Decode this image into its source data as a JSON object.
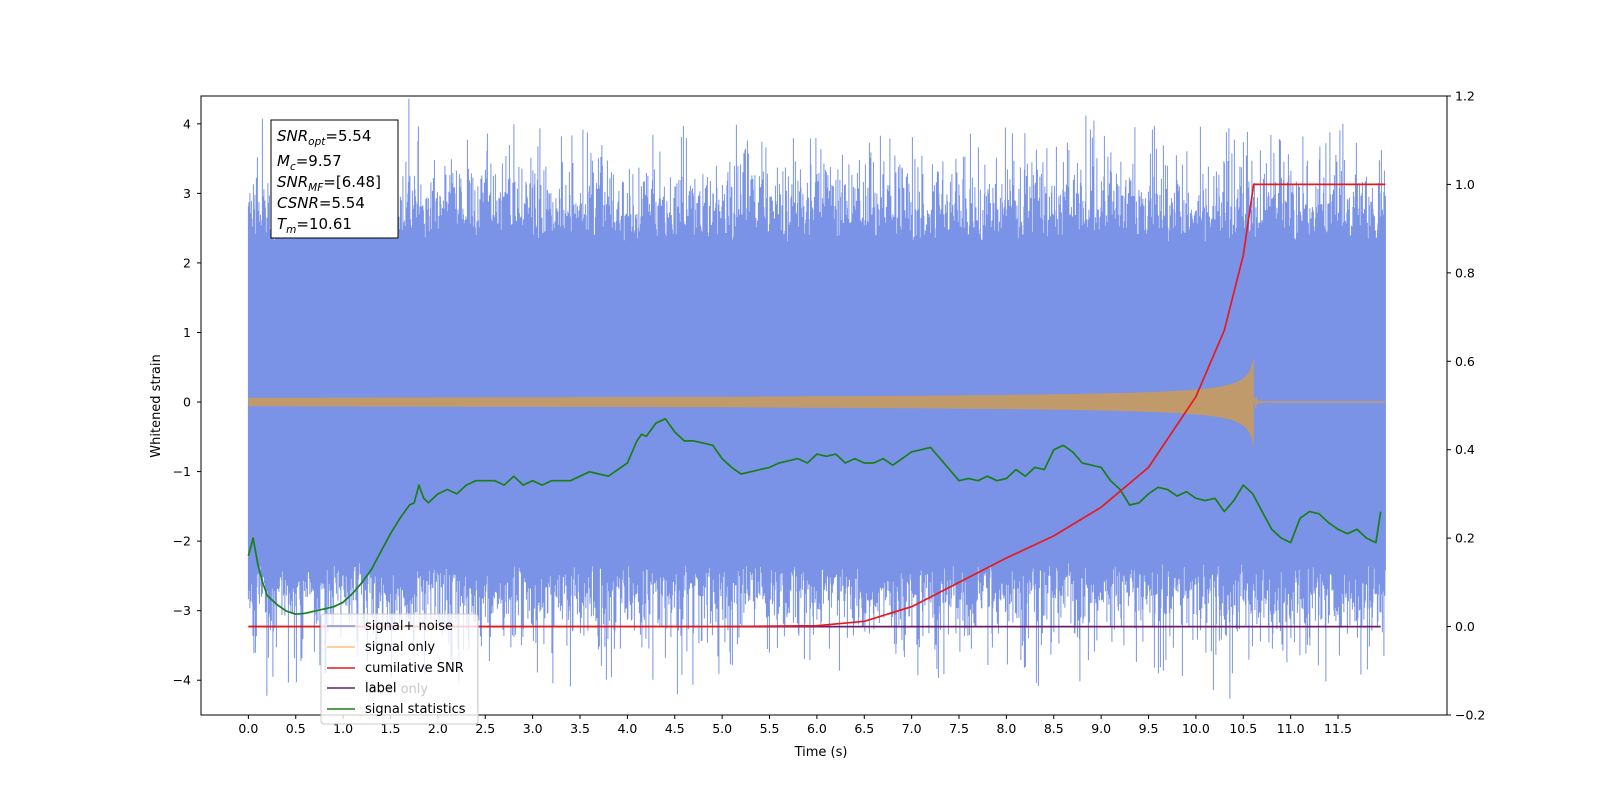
{
  "chart_data": {
    "type": "line",
    "xlabel": "Time (s)",
    "ylabel": "Whitened strain",
    "xlim": [
      -0.5,
      12.65
    ],
    "ylim": [
      -4.5,
      4.4
    ],
    "y2lim": [
      -0.2,
      1.2
    ],
    "grid": false,
    "legend_position": "lower-left",
    "x_ticks": [
      "0.0",
      "0.5",
      "1.0",
      "1.5",
      "2.0",
      "2.5",
      "3.0",
      "3.5",
      "4.0",
      "4.5",
      "5.0",
      "5.5",
      "6.0",
      "6.5",
      "7.0",
      "7.5",
      "8.0",
      "8.5",
      "9.0",
      "9.5",
      "10.0",
      "10.5",
      "11.0",
      "11.5"
    ],
    "y_ticks": [
      "4",
      "3",
      "2",
      "1",
      "0",
      "−1",
      "−2",
      "−3",
      "−4"
    ],
    "y2_ticks": [
      "1.2",
      "1.0",
      "0.8",
      "0.6",
      "0.4",
      "0.2",
      "0.0",
      "−0.2"
    ],
    "annotation": {
      "snr_opt": {
        "sym": "SNR",
        "sub": "opt",
        "value": "=5.54"
      },
      "mc": {
        "sym": "M",
        "sub": "c",
        "value": "=9.57"
      },
      "snr_mf": {
        "sym": "SNR",
        "sub": "MF",
        "value": "=[6.48]"
      },
      "csnr": {
        "sym": "CSNR",
        "sub": "",
        "value": "=5.54"
      },
      "tm": {
        "sym": "T",
        "sub": "m",
        "value": "=10.61"
      }
    },
    "series": [
      {
        "name": "signal+ noise",
        "color": "#7a93e6",
        "axis": "left",
        "x_range": [
          0.0,
          12.0
        ],
        "envelope_upper": 2.3,
        "envelope_lower": -2.3,
        "peak_max": 4.0,
        "peak_min": -4.1
      },
      {
        "name": "signal only",
        "color": "#ffc47a",
        "axis": "left",
        "merger_time": 10.61,
        "peak_amplitude": 0.65
      },
      {
        "name": "cumilative SNR",
        "color": "#e8191c",
        "axis": "right",
        "x": [
          0.0,
          5.0,
          6.0,
          6.5,
          7.0,
          7.5,
          8.0,
          8.5,
          9.0,
          9.5,
          10.0,
          10.3,
          10.5,
          10.61,
          12.0
        ],
        "y": [
          0.0,
          0.0,
          0.002,
          0.012,
          0.045,
          0.1,
          0.155,
          0.205,
          0.27,
          0.36,
          0.52,
          0.67,
          0.84,
          1.0,
          1.0
        ]
      },
      {
        "name": "label",
        "color": "#6a1b6e",
        "axis": "right",
        "x": [
          0.0,
          11.95
        ],
        "y": [
          0.0,
          0.0
        ]
      },
      {
        "name": "label only",
        "color": "#8e8ee0",
        "axis": "right",
        "hidden": true
      },
      {
        "name": "signal statistics",
        "color": "#1a7f1a",
        "axis": "right",
        "x": [
          0.0,
          0.05,
          0.1,
          0.15,
          0.2,
          0.3,
          0.4,
          0.5,
          0.6,
          0.7,
          0.8,
          0.9,
          1.0,
          1.1,
          1.2,
          1.3,
          1.4,
          1.5,
          1.6,
          1.7,
          1.75,
          1.8,
          1.85,
          1.9,
          2.0,
          2.1,
          2.2,
          2.3,
          2.4,
          2.5,
          2.6,
          2.7,
          2.8,
          2.9,
          3.0,
          3.1,
          3.2,
          3.3,
          3.4,
          3.5,
          3.6,
          3.7,
          3.8,
          3.9,
          4.0,
          4.1,
          4.15,
          4.2,
          4.3,
          4.4,
          4.5,
          4.6,
          4.7,
          4.8,
          4.9,
          5.0,
          5.1,
          5.2,
          5.3,
          5.4,
          5.5,
          5.6,
          5.7,
          5.8,
          5.9,
          6.0,
          6.1,
          6.2,
          6.3,
          6.4,
          6.5,
          6.6,
          6.7,
          6.8,
          6.9,
          7.0,
          7.1,
          7.2,
          7.3,
          7.4,
          7.5,
          7.6,
          7.7,
          7.8,
          7.9,
          8.0,
          8.1,
          8.2,
          8.3,
          8.4,
          8.5,
          8.6,
          8.7,
          8.8,
          8.9,
          9.0,
          9.1,
          9.2,
          9.3,
          9.4,
          9.5,
          9.6,
          9.7,
          9.8,
          9.9,
          10.0,
          10.1,
          10.2,
          10.3,
          10.4,
          10.5,
          10.6,
          10.7,
          10.8,
          10.9,
          11.0,
          11.1,
          11.2,
          11.3,
          11.4,
          11.5,
          11.6,
          11.7,
          11.8,
          11.9,
          11.95
        ],
        "y": [
          0.16,
          0.2,
          0.14,
          0.1,
          0.07,
          0.05,
          0.035,
          0.028,
          0.03,
          0.035,
          0.04,
          0.045,
          0.055,
          0.075,
          0.1,
          0.13,
          0.17,
          0.21,
          0.245,
          0.275,
          0.28,
          0.32,
          0.29,
          0.28,
          0.3,
          0.31,
          0.3,
          0.32,
          0.33,
          0.33,
          0.33,
          0.32,
          0.34,
          0.32,
          0.33,
          0.32,
          0.33,
          0.33,
          0.33,
          0.34,
          0.35,
          0.345,
          0.34,
          0.355,
          0.37,
          0.42,
          0.435,
          0.43,
          0.46,
          0.47,
          0.44,
          0.42,
          0.42,
          0.415,
          0.41,
          0.38,
          0.36,
          0.345,
          0.35,
          0.355,
          0.36,
          0.37,
          0.375,
          0.38,
          0.37,
          0.39,
          0.385,
          0.39,
          0.37,
          0.38,
          0.37,
          0.37,
          0.38,
          0.365,
          0.38,
          0.395,
          0.4,
          0.405,
          0.38,
          0.355,
          0.33,
          0.335,
          0.33,
          0.34,
          0.33,
          0.335,
          0.355,
          0.34,
          0.36,
          0.355,
          0.4,
          0.41,
          0.395,
          0.37,
          0.365,
          0.36,
          0.33,
          0.31,
          0.275,
          0.28,
          0.3,
          0.315,
          0.31,
          0.295,
          0.305,
          0.29,
          0.285,
          0.29,
          0.26,
          0.285,
          0.32,
          0.3,
          0.26,
          0.22,
          0.2,
          0.19,
          0.245,
          0.26,
          0.255,
          0.235,
          0.22,
          0.21,
          0.22,
          0.2,
          0.19,
          0.26
        ]
      }
    ]
  }
}
